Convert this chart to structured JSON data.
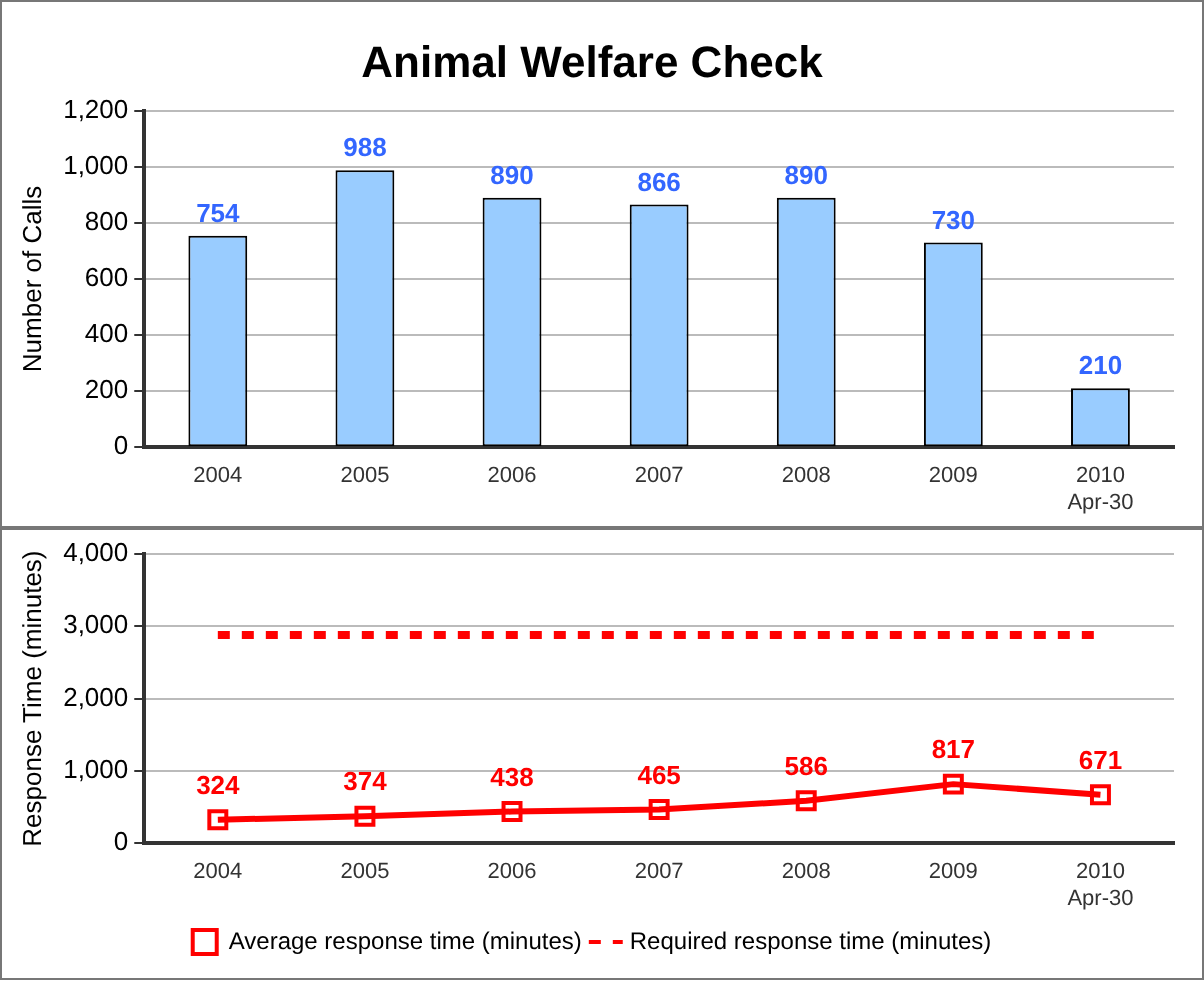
{
  "chart_data": [
    {
      "type": "bar",
      "title": "Animal Welfare Check",
      "ylabel": "Number of Calls",
      "categories": [
        "2004",
        "2005",
        "2006",
        "2007",
        "2008",
        "2009",
        "2010 Apr-30"
      ],
      "values": [
        754,
        988,
        890,
        866,
        890,
        730,
        210
      ],
      "color": "#99ccff",
      "ylim": [
        0,
        1200
      ],
      "yticks": [
        0,
        200,
        400,
        600,
        800,
        {
          "value": 1000,
          "label": "1,000"
        },
        {
          "value": 1200,
          "label": "1,200"
        }
      ],
      "grid": "y",
      "data_labels": true,
      "legend": false
    },
    {
      "type": "line",
      "ylabel": "Response Time (minutes)",
      "categories": [
        "2004",
        "2005",
        "2006",
        "2007",
        "2008",
        "2009",
        "2010 Apr-30"
      ],
      "series": [
        {
          "name": "Average response time (minutes)",
          "color": "#ff0000",
          "values": [
            324,
            374,
            438,
            465,
            586,
            817,
            671
          ],
          "marker": "square",
          "line_style": "solid",
          "value_labels": [
            "324",
            "374",
            "438",
            "465",
            "586",
            "817",
            "671"
          ]
        },
        {
          "name": "Required response time (minutes)",
          "color": "#ff0000",
          "values": [
            2880,
            2880,
            2880,
            2880,
            2880,
            2880,
            2880
          ],
          "marker": "none",
          "line_style": "dashed"
        }
      ],
      "ylim": [
        0,
        4000
      ],
      "yticks": [
        0,
        {
          "value": 1000,
          "label": "1,000"
        },
        {
          "value": 2000,
          "label": "2,000"
        },
        {
          "value": 3000,
          "label": "3,000"
        },
        {
          "value": 4000,
          "label": "4,000"
        }
      ],
      "grid": "y",
      "legend": "bottom"
    }
  ]
}
